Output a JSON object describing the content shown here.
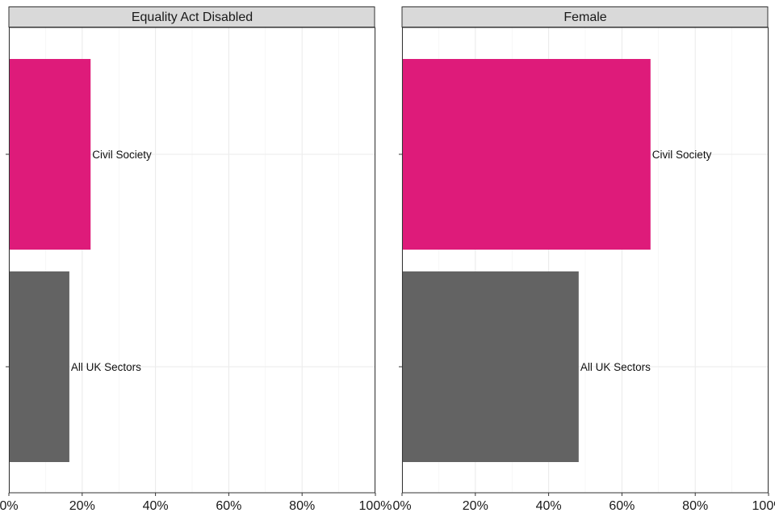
{
  "chart_data": {
    "type": "bar",
    "orientation": "horizontal",
    "xlim": [
      0,
      100
    ],
    "x_tick_values": [
      0,
      20,
      40,
      60,
      80,
      100
    ],
    "x_tick_labels": [
      "0%",
      "20%",
      "40%",
      "60%",
      "80%",
      "100%"
    ],
    "grid": true,
    "facets": [
      {
        "title": "Equality Act Disabled",
        "bars": [
          {
            "label": "Civil Society",
            "value": 22.3
          },
          {
            "label": "All UK Sectors",
            "value": 16.5
          }
        ]
      },
      {
        "title": "Female",
        "bars": [
          {
            "label": "Civil Society",
            "value": 67.8
          },
          {
            "label": "All UK Sectors",
            "value": 48.2
          }
        ]
      }
    ],
    "colors": {
      "Civil Society": "#de1b7a",
      "All UK Sectors": "#636363"
    }
  }
}
